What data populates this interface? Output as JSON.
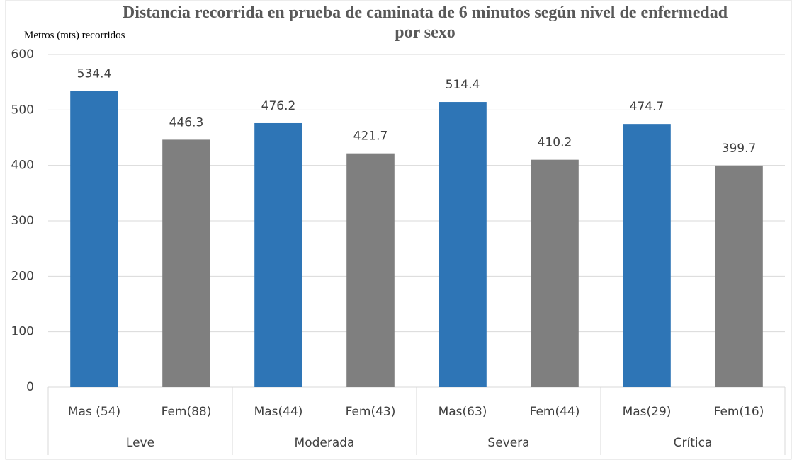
{
  "chart_data": {
    "type": "bar",
    "title": "Distancia recorrida en prueba de caminata de  6 minutos según nivel de enfermedad por sexo",
    "y_label": "Metros (mts) recorridos",
    "categories": [
      "Mas (54)",
      "Fem(88)",
      "Mas(44)",
      "Fem(43)",
      "Mas(63)",
      "Fem(44)",
      "Mas(29)",
      "Fem(16)"
    ],
    "groups": [
      "Leve",
      "Moderada",
      "Severa",
      "Crítica"
    ],
    "values": [
      534.4,
      446.3,
      476.2,
      421.7,
      514.4,
      410.2,
      474.7,
      399.7
    ],
    "colors": [
      "#2e75b6",
      "#7f7f7f",
      "#2e75b6",
      "#7f7f7f",
      "#2e75b6",
      "#7f7f7f",
      "#2e75b6",
      "#7f7f7f"
    ],
    "ylim": [
      0,
      600
    ],
    "yticks": [
      0,
      100,
      200,
      300,
      400,
      500,
      600
    ],
    "grid": true
  }
}
